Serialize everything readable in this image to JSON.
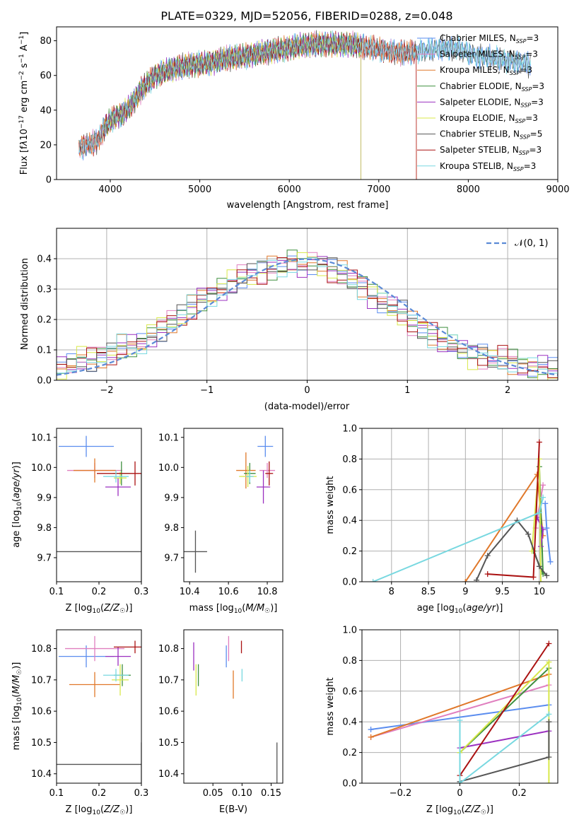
{
  "figure": {
    "title": "PLATE=0329, MJD=52056, FIBERID=0288, z=0.048"
  },
  "colors": {
    "Chabrier MILES": "#5b8def",
    "Salpeter MILES": "#e07fbf",
    "Kroupa MILES": "#e0782a",
    "Chabrier ELODIE": "#3f8f3f",
    "Salpeter ELODIE": "#9b30c0",
    "Kroupa ELODIE": "#d8e84a",
    "Chabrier STELIB": "#555555",
    "Salpeter STELIB": "#aa1111",
    "Kroupa STELIB": "#78d8e0"
  },
  "chart_data": [
    {
      "id": "spectrum",
      "type": "line",
      "title": "PLATE=0329, MJD=52056, FIBERID=0288, z=0.048",
      "xlabel": "wavelength [Angstrom, rest frame]",
      "ylabel": "Flux [f_λ 10^-17 erg cm^-2 s^-1 A^-1]",
      "xlim": [
        3400,
        9000
      ],
      "ylim": [
        0,
        88
      ],
      "xticks": [
        4000,
        5000,
        6000,
        7000,
        8000,
        9000
      ],
      "yticks": [
        0,
        20,
        40,
        60,
        80
      ],
      "grid": false,
      "legend_position": "upper right",
      "series": [
        {
          "name": "Chabrier MILES, N_SSP=3",
          "range": [
            3650,
            8700
          ]
        },
        {
          "name": "Salpeter MILES, N_SSP=3",
          "range": [
            3650,
            7420
          ]
        },
        {
          "name": "Kroupa MILES, N_SSP=3",
          "range": [
            3650,
            7420
          ]
        },
        {
          "name": "Chabrier ELODIE, N_SSP=3",
          "range": [
            3920,
            6800
          ]
        },
        {
          "name": "Salpeter ELODIE, N_SSP=3",
          "range": [
            3920,
            6800
          ]
        },
        {
          "name": "Kroupa ELODIE, N_SSP=3",
          "range": [
            3920,
            6800
          ]
        },
        {
          "name": "Chabrier STELIB, N_SSP=5",
          "range": [
            3650,
            8700
          ]
        },
        {
          "name": "Salpeter STELIB, N_SSP=3",
          "range": [
            3650,
            7420
          ]
        },
        {
          "name": "Kroupa STELIB, N_SSP=3",
          "range": [
            3650,
            8700
          ]
        }
      ],
      "continuum": [
        [
          3650,
          18
        ],
        [
          3750,
          20
        ],
        [
          3850,
          22
        ],
        [
          3950,
          31
        ],
        [
          4050,
          36
        ],
        [
          4150,
          38
        ],
        [
          4250,
          44
        ],
        [
          4350,
          52
        ],
        [
          4500,
          60
        ],
        [
          4700,
          64
        ],
        [
          4900,
          66
        ],
        [
          5100,
          67
        ],
        [
          5300,
          70
        ],
        [
          5500,
          71
        ],
        [
          5700,
          73
        ],
        [
          5900,
          75
        ],
        [
          6100,
          77
        ],
        [
          6300,
          78
        ],
        [
          6500,
          78
        ],
        [
          6700,
          78
        ],
        [
          6900,
          76
        ],
        [
          7100,
          74
        ],
        [
          7300,
          73
        ],
        [
          7500,
          74
        ],
        [
          7700,
          76
        ],
        [
          7900,
          75
        ],
        [
          8100,
          71
        ],
        [
          8300,
          70
        ],
        [
          8500,
          68
        ],
        [
          8700,
          66
        ]
      ]
    },
    {
      "id": "residuals",
      "type": "histogram",
      "xlabel": "(data-model)/error",
      "ylabel": "Normed distribution",
      "xlim": [
        -2.5,
        2.5
      ],
      "ylim": [
        0,
        0.5
      ],
      "xticks": [
        -2,
        -1,
        0,
        1,
        2
      ],
      "yticks": [
        0.0,
        0.1,
        0.2,
        0.3,
        0.4
      ],
      "grid": true,
      "legend": "N(0, 1)",
      "legend_position": "upper right",
      "bins": 50,
      "series_profile": [
        0.04,
        0.05,
        0.07,
        0.07,
        0.08,
        0.09,
        0.11,
        0.11,
        0.12,
        0.15,
        0.17,
        0.19,
        0.21,
        0.24,
        0.27,
        0.28,
        0.3,
        0.32,
        0.34,
        0.35,
        0.36,
        0.37,
        0.37,
        0.39,
        0.38,
        0.39,
        0.38,
        0.36,
        0.35,
        0.33,
        0.31,
        0.28,
        0.26,
        0.24,
        0.22,
        0.19,
        0.17,
        0.15,
        0.13,
        0.12,
        0.1,
        0.08,
        0.08,
        0.07,
        0.07,
        0.06,
        0.05,
        0.04,
        0.04,
        0.03
      ]
    },
    {
      "id": "age-vs-Z",
      "type": "errorbar",
      "xlabel": "Z [log10(Z/Z☉)]",
      "ylabel": "age [log10(age/yr)]",
      "xlim": [
        0.1,
        0.3
      ],
      "ylim": [
        9.62,
        10.13
      ],
      "xticks": [
        0.1,
        0.2,
        0.3
      ],
      "yticks": [
        9.7,
        9.8,
        9.9,
        10.0,
        10.1
      ],
      "points": [
        {
          "model": "Chabrier MILES",
          "x": 0.17,
          "y": 10.07,
          "xerr": 0.065,
          "yerr": 0.035
        },
        {
          "model": "Salpeter MILES",
          "x": 0.19,
          "y": 9.99,
          "xerr": 0.065,
          "yerr": 0.025
        },
        {
          "model": "Kroupa MILES",
          "x": 0.19,
          "y": 9.99,
          "xerr": 0.05,
          "yerr": 0.04
        },
        {
          "model": "Chabrier ELODIE",
          "x": 0.253,
          "y": 9.98,
          "xerr": 0.02,
          "yerr": 0.04
        },
        {
          "model": "Salpeter ELODIE",
          "x": 0.245,
          "y": 9.935,
          "xerr": 0.03,
          "yerr": 0.03
        },
        {
          "model": "Kroupa ELODIE",
          "x": 0.25,
          "y": 9.965,
          "xerr": 0.015,
          "yerr": 0.02
        },
        {
          "model": "Chabrier STELIB",
          "x": 0.3,
          "y": 9.72,
          "xerr": 0.2,
          "yerr": 0.26
        },
        {
          "model": "Salpeter STELIB",
          "x": 0.285,
          "y": 9.98,
          "xerr": 0.09,
          "yerr": 0.04
        },
        {
          "model": "Kroupa STELIB",
          "x": 0.24,
          "y": 9.97,
          "xerr": 0.03,
          "yerr": 0.02
        }
      ]
    },
    {
      "id": "age-vs-mass",
      "type": "errorbar",
      "xlabel": "mass [log10(M/M☉)]",
      "xlim": [
        10.37,
        10.88
      ],
      "ylim": [
        9.62,
        10.13
      ],
      "xticks": [
        10.4,
        10.6,
        10.8
      ],
      "yticks": [
        9.7,
        9.8,
        9.9,
        10.0,
        10.1
      ],
      "points": [
        {
          "model": "Chabrier MILES",
          "x": 10.79,
          "y": 10.07,
          "xerr": 0.04,
          "yerr": 0.035
        },
        {
          "model": "Salpeter MILES",
          "x": 10.8,
          "y": 9.99,
          "xerr": 0.04,
          "yerr": 0.025
        },
        {
          "model": "Kroupa MILES",
          "x": 10.69,
          "y": 9.99,
          "xerr": 0.05,
          "yerr": 0.06
        },
        {
          "model": "Chabrier ELODIE",
          "x": 10.71,
          "y": 9.98,
          "xerr": 0.03,
          "yerr": 0.035
        },
        {
          "model": "Salpeter ELODIE",
          "x": 10.78,
          "y": 9.935,
          "xerr": 0.035,
          "yerr": 0.055
        },
        {
          "model": "Kroupa ELODIE",
          "x": 10.7,
          "y": 9.97,
          "xerr": 0.045,
          "yerr": 0.035
        },
        {
          "model": "Chabrier STELIB",
          "x": 10.43,
          "y": 9.72,
          "xerr": 0.06,
          "yerr": 0.07
        },
        {
          "model": "Salpeter STELIB",
          "x": 10.81,
          "y": 9.98,
          "xerr": 0.02,
          "yerr": 0.04
        },
        {
          "model": "Kroupa STELIB",
          "x": 10.71,
          "y": 9.97,
          "xerr": 0.02,
          "yerr": 0.02
        }
      ]
    },
    {
      "id": "mass-weight-vs-age",
      "type": "line",
      "xlabel": "age [log10(age/yr)]",
      "ylabel": "mass weight",
      "xlim": [
        7.6,
        10.25
      ],
      "ylim": [
        0,
        1
      ],
      "xticks": [
        8.0,
        8.5,
        9.0,
        9.5,
        10.0
      ],
      "yticks": [
        0.0,
        0.2,
        0.4,
        0.6,
        0.8,
        1.0
      ],
      "grid": true,
      "series": [
        {
          "model": "Chabrier MILES",
          "points": [
            [
              10.15,
              0.13
            ],
            [
              10.1,
              0.35
            ],
            [
              10.08,
              0.51
            ]
          ]
        },
        {
          "model": "Salpeter MILES",
          "points": [
            [
              9.95,
              0.35
            ],
            [
              10.05,
              0.63
            ]
          ]
        },
        {
          "model": "Kroupa MILES",
          "points": [
            [
              9.0,
              0.0
            ],
            [
              9.97,
              0.7
            ],
            [
              10.05,
              0.3
            ]
          ]
        },
        {
          "model": "Chabrier ELODIE",
          "points": [
            [
              10.0,
              0.75
            ],
            [
              10.05,
              0.05
            ],
            [
              9.92,
              0.2
            ]
          ]
        },
        {
          "model": "Salpeter ELODIE",
          "points": [
            [
              9.97,
              0.42
            ],
            [
              10.05,
              0.34
            ],
            [
              10.02,
              0.23
            ]
          ]
        },
        {
          "model": "Kroupa ELODIE",
          "points": [
            [
              9.9,
              0.2
            ],
            [
              10.0,
              0.8
            ],
            [
              10.02,
              0.0
            ]
          ]
        },
        {
          "model": "Chabrier STELIB",
          "points": [
            [
              9.15,
              0.01
            ],
            [
              9.3,
              0.17
            ],
            [
              9.7,
              0.4
            ],
            [
              9.85,
              0.31
            ],
            [
              10.0,
              0.1
            ],
            [
              10.1,
              0.04
            ]
          ]
        },
        {
          "model": "Salpeter STELIB",
          "points": [
            [
              9.3,
              0.05
            ],
            [
              9.92,
              0.03
            ],
            [
              10.0,
              0.91
            ]
          ]
        },
        {
          "model": "Kroupa STELIB",
          "points": [
            [
              7.75,
              0.0
            ],
            [
              10.0,
              0.45
            ],
            [
              10.05,
              0.55
            ]
          ]
        }
      ]
    },
    {
      "id": "mass-vs-Z",
      "type": "errorbar",
      "xlabel": "Z [log10(Z/Z☉)]",
      "ylabel": "mass [log10(M/M☉)]",
      "xlim": [
        0.1,
        0.3
      ],
      "ylim": [
        10.37,
        10.86
      ],
      "xticks": [
        0.1,
        0.2,
        0.3
      ],
      "yticks": [
        10.4,
        10.5,
        10.6,
        10.7,
        10.8
      ],
      "points": [
        {
          "model": "Chabrier MILES",
          "x": 0.17,
          "y": 10.775,
          "xerr": 0.065,
          "yerr": 0.035
        },
        {
          "model": "Salpeter MILES",
          "x": 0.19,
          "y": 10.8,
          "xerr": 0.07,
          "yerr": 0.04
        },
        {
          "model": "Kroupa MILES",
          "x": 0.19,
          "y": 10.685,
          "xerr": 0.06,
          "yerr": 0.04
        },
        {
          "model": "Chabrier ELODIE",
          "x": 0.255,
          "y": 10.715,
          "xerr": 0.02,
          "yerr": 0.035
        },
        {
          "model": "Salpeter ELODIE",
          "x": 0.245,
          "y": 10.775,
          "xerr": 0.03,
          "yerr": 0.03
        },
        {
          "model": "Kroupa ELODIE",
          "x": 0.25,
          "y": 10.7,
          "xerr": 0.02,
          "yerr": 0.05
        },
        {
          "model": "Chabrier STELIB",
          "x": 0.3,
          "y": 10.43,
          "xerr": 0.2,
          "yerr": 0.07
        },
        {
          "model": "Salpeter STELIB",
          "x": 0.285,
          "y": 10.805,
          "xerr": 0.05,
          "yerr": 0.02
        },
        {
          "model": "Kroupa STELIB",
          "x": 0.24,
          "y": 10.715,
          "xerr": 0.03,
          "yerr": 0.02
        }
      ]
    },
    {
      "id": "mass-vs-ebv",
      "type": "errorbar",
      "xlabel": "E(B-V)",
      "xlim": [
        0.0,
        0.17
      ],
      "ylim": [
        10.37,
        10.86
      ],
      "xticks": [
        0.05,
        0.1,
        0.15
      ],
      "xtick_labels": [
        "0.05",
        "0.10",
        "0.15"
      ],
      "yticks": [
        10.4,
        10.5,
        10.6,
        10.7,
        10.8
      ],
      "points": [
        {
          "model": "Chabrier MILES",
          "x": 0.073,
          "y": 10.775,
          "yerr": 0.035
        },
        {
          "model": "Salpeter MILES",
          "x": 0.077,
          "y": 10.8,
          "yerr": 0.04
        },
        {
          "model": "Kroupa MILES",
          "x": 0.085,
          "y": 10.685,
          "yerr": 0.045
        },
        {
          "model": "Chabrier ELODIE",
          "x": 0.025,
          "y": 10.715,
          "yerr": 0.035
        },
        {
          "model": "Salpeter ELODIE",
          "x": 0.017,
          "y": 10.775,
          "yerr": 0.045
        },
        {
          "model": "Kroupa ELODIE",
          "x": 0.021,
          "y": 10.7,
          "yerr": 0.05
        },
        {
          "model": "Chabrier STELIB",
          "x": 0.16,
          "y": 10.43,
          "yerr": 0.07
        },
        {
          "model": "Salpeter STELIB",
          "x": 0.099,
          "y": 10.805,
          "yerr": 0.02
        },
        {
          "model": "Kroupa STELIB",
          "x": 0.1,
          "y": 10.715,
          "yerr": 0.02
        }
      ]
    },
    {
      "id": "mass-weight-vs-Z",
      "type": "line",
      "xlabel": "Z [log10(Z/Z☉)]",
      "ylabel": "mass weight",
      "xlim": [
        -0.33,
        0.33
      ],
      "ylim": [
        0,
        1
      ],
      "xticks": [
        -0.2,
        0.0,
        0.2
      ],
      "yticks": [
        0.0,
        0.2,
        0.4,
        0.6,
        0.8,
        1.0
      ],
      "grid": true,
      "series": [
        {
          "model": "Chabrier MILES",
          "points": [
            [
              -0.3,
              0.35
            ],
            [
              0.3,
              0.51
            ]
          ]
        },
        {
          "model": "Salpeter MILES",
          "points": [
            [
              -0.3,
              0.3
            ],
            [
              0.3,
              0.64
            ]
          ]
        },
        {
          "model": "Kroupa MILES",
          "points": [
            [
              -0.3,
              0.3
            ],
            [
              0.3,
              0.71
            ]
          ]
        },
        {
          "model": "Chabrier ELODIE",
          "points": [
            [
              0.0,
              0.2
            ],
            [
              0.3,
              0.75
            ]
          ]
        },
        {
          "model": "Salpeter ELODIE",
          "points": [
            [
              0.0,
              0.23
            ],
            [
              0.3,
              0.34
            ]
          ]
        },
        {
          "model": "Kroupa ELODIE",
          "points": [
            [
              0.0,
              0.2
            ],
            [
              0.3,
              0.79
            ],
            [
              0.3,
              0.0
            ]
          ]
        },
        {
          "model": "Chabrier STELIB",
          "points": [
            [
              0.0,
              0.01
            ],
            [
              0.3,
              0.17
            ],
            [
              0.3,
              0.4
            ]
          ]
        },
        {
          "model": "Salpeter STELIB",
          "points": [
            [
              0.0,
              0.05
            ],
            [
              0.3,
              0.91
            ]
          ]
        },
        {
          "model": "Kroupa STELIB",
          "points": [
            [
              0.0,
              0.41
            ],
            [
              0.0,
              0.0
            ],
            [
              0.3,
              0.45
            ]
          ]
        }
      ]
    }
  ]
}
